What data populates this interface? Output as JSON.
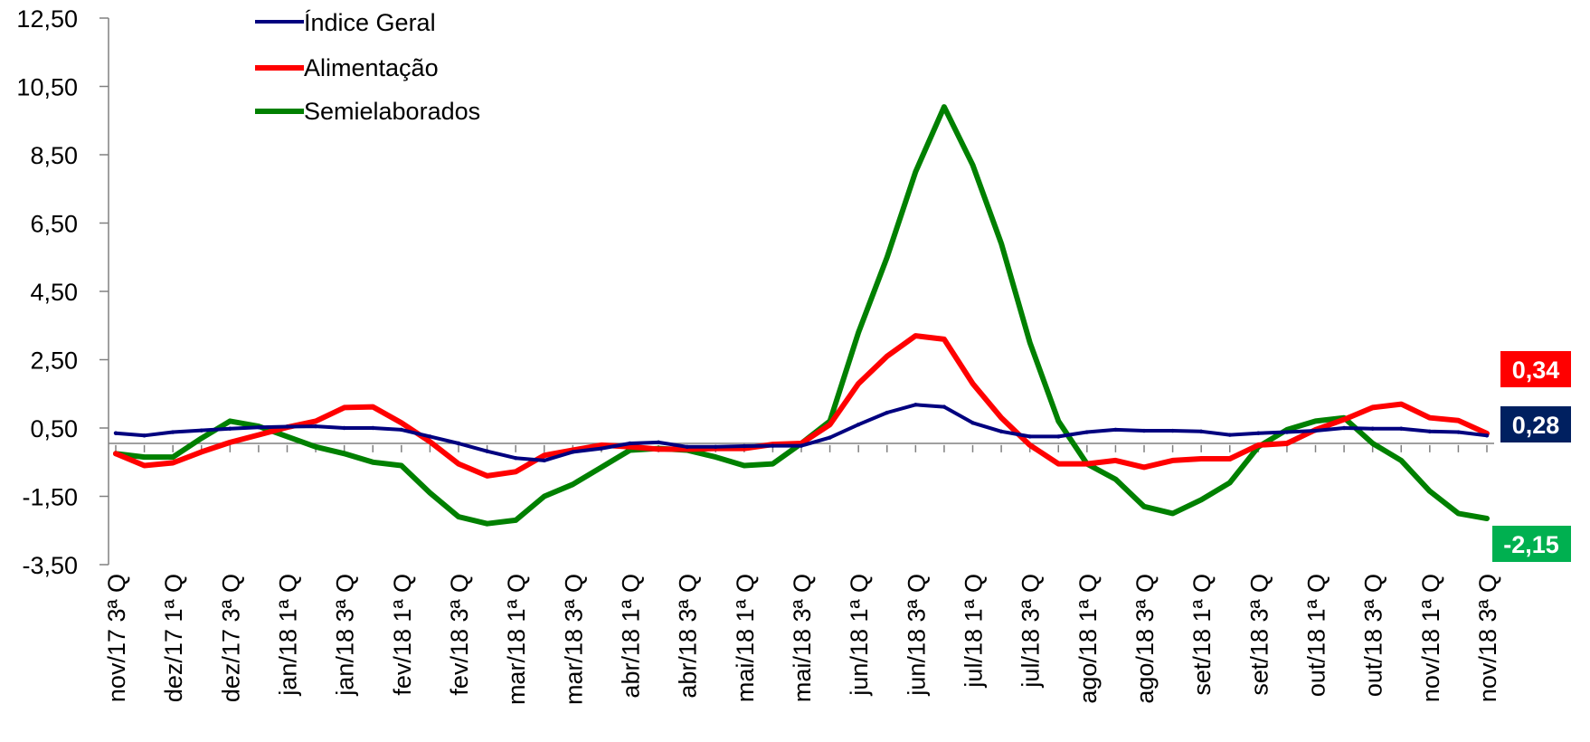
{
  "chart_data": {
    "type": "line",
    "categories": [
      "nov/17 3ª Q",
      "",
      "dez/17 1ª Q",
      "",
      "dez/17 3ª Q",
      "",
      "jan/18 1ª Q",
      "",
      "jan/18 3ª Q",
      "",
      "fev/18 1ª Q",
      "",
      "fev/18 3ª Q",
      "",
      "mar/18 1ª Q",
      "",
      "mar/18 3ª Q",
      "",
      "abr/18 1ª Q",
      "",
      "abr/18 3ª Q",
      "",
      "mai/18 1ª Q",
      "",
      "mai/18 3ª Q",
      "",
      "jun/18 1ª Q",
      "",
      "jun/18 3ª Q",
      "",
      "jul/18 1ª Q",
      "",
      "jul/18 3ª Q",
      "",
      "ago/18 1ª Q",
      "",
      "ago/18 3ª Q",
      "",
      "set/18 1ª Q",
      "",
      "set/18 3ª Q",
      "",
      "out/18 1ª Q",
      "",
      "out/18 3ª Q",
      "",
      "nov/18 1ª Q",
      "",
      "nov/18 3ª Q"
    ],
    "series": [
      {
        "name": "Índice Geral",
        "color": "#00007f",
        "values": [
          0.35,
          0.28,
          0.38,
          0.43,
          0.48,
          0.52,
          0.54,
          0.55,
          0.5,
          0.5,
          0.45,
          0.25,
          0.05,
          -0.18,
          -0.38,
          -0.45,
          -0.2,
          -0.1,
          0.05,
          0.08,
          -0.05,
          -0.05,
          -0.03,
          -0.02,
          -0.02,
          0.22,
          0.6,
          0.95,
          1.18,
          1.12,
          0.65,
          0.4,
          0.25,
          0.25,
          0.38,
          0.45,
          0.42,
          0.42,
          0.4,
          0.3,
          0.35,
          0.38,
          0.42,
          0.5,
          0.48,
          0.48,
          0.4,
          0.38,
          0.28
        ]
      },
      {
        "name": "Alimentação",
        "color": "#ff0000",
        "values": [
          -0.25,
          -0.6,
          -0.52,
          -0.2,
          0.08,
          0.3,
          0.52,
          0.7,
          1.1,
          1.12,
          0.65,
          0.1,
          -0.55,
          -0.9,
          -0.78,
          -0.3,
          -0.15,
          0.0,
          -0.05,
          -0.12,
          -0.12,
          -0.1,
          -0.1,
          0.02,
          0.05,
          0.6,
          1.8,
          2.6,
          3.2,
          3.1,
          1.8,
          0.8,
          0.0,
          -0.55,
          -0.55,
          -0.45,
          -0.65,
          -0.45,
          -0.4,
          -0.4,
          0.0,
          0.05,
          0.45,
          0.75,
          1.1,
          1.2,
          0.8,
          0.72,
          0.34
        ]
      },
      {
        "name": "Semielaborados",
        "color": "#008000",
        "values": [
          -0.25,
          -0.35,
          -0.35,
          0.2,
          0.7,
          0.55,
          0.25,
          -0.05,
          -0.25,
          -0.5,
          -0.6,
          -1.4,
          -2.1,
          -2.3,
          -2.2,
          -1.5,
          -1.15,
          -0.65,
          -0.15,
          -0.1,
          -0.15,
          -0.35,
          -0.6,
          -0.55,
          0.05,
          0.7,
          3.3,
          5.5,
          8.0,
          9.9,
          8.2,
          5.9,
          3.0,
          0.7,
          -0.55,
          -1.0,
          -1.8,
          -2.0,
          -1.6,
          -1.1,
          -0.05,
          0.45,
          0.7,
          0.8,
          0.05,
          -0.45,
          -1.35,
          -2.0,
          -2.15
        ]
      }
    ],
    "ylim": [
      -3.5,
      12.5
    ],
    "yticks": [
      "12,50",
      "10,50",
      "8,50",
      "6,50",
      "4,50",
      "2,50",
      "0,50",
      "-1,50",
      "-3,50"
    ],
    "end_labels": [
      {
        "text": "0,34",
        "color": "#ff0000"
      },
      {
        "text": "0,28",
        "color": "#002060"
      },
      {
        "text": "-2,15",
        "color": "#00b050"
      }
    ],
    "legend_position": "top-left",
    "grid": false,
    "title": "",
    "xlabel": "",
    "ylabel": ""
  }
}
